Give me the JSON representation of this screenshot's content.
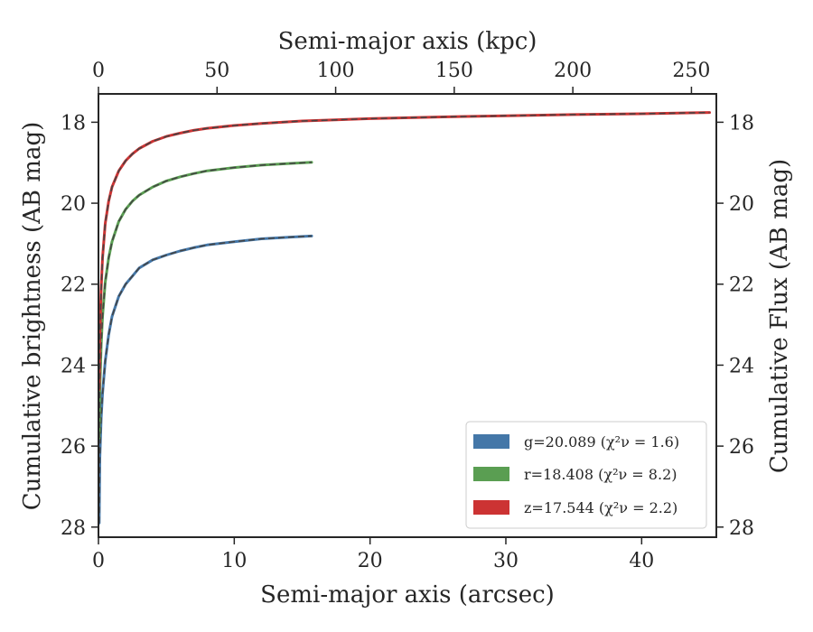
{
  "chart_data": {
    "type": "line",
    "title": "",
    "xlabel": "Semi-major axis (arcsec)",
    "top_xlabel": "Semi-major axis (kpc)",
    "ylabel": "Cumulative brightness (AB mag)",
    "right_ylabel": "Cumulative Flux (AB mag)",
    "xlim": [
      0,
      45.5
    ],
    "top_xlim": [
      0,
      260.5
    ],
    "ylim": [
      28.25,
      17.3
    ],
    "y_inverted": true,
    "xticks": [
      "0",
      "10",
      "20",
      "30",
      "40"
    ],
    "top_xticks": [
      "0",
      "50",
      "100",
      "150",
      "200",
      "250"
    ],
    "yticks": [
      "18",
      "20",
      "22",
      "24",
      "26",
      "28"
    ],
    "grid": false,
    "legend_position": "lower-right",
    "series": [
      {
        "name": "g=20.089",
        "chi2_label": "(χ²ν = 1.6)",
        "color": "#4477a8",
        "x": [
          0.05,
          0.1,
          0.2,
          0.3,
          0.5,
          0.75,
          1.0,
          1.5,
          2.0,
          2.5,
          3.0,
          4.0,
          5.0,
          6.0,
          7.0,
          8.0,
          10.0,
          12.0,
          14.0,
          15.7
        ],
        "y": [
          27.9,
          26.3,
          25.3,
          24.7,
          23.9,
          23.25,
          22.8,
          22.3,
          22.0,
          21.8,
          21.6,
          21.4,
          21.28,
          21.18,
          21.1,
          21.03,
          20.95,
          20.88,
          20.84,
          20.81
        ]
      },
      {
        "name": "r=18.408",
        "chi2_label": "(χ²ν = 8.2)",
        "color": "#5a9e52",
        "x": [
          0.05,
          0.1,
          0.2,
          0.3,
          0.5,
          0.75,
          1.0,
          1.5,
          2.0,
          2.5,
          3.0,
          4.0,
          5.0,
          6.0,
          7.0,
          8.0,
          10.0,
          12.0,
          14.0,
          15.7
        ],
        "y": [
          25.8,
          24.6,
          23.5,
          22.8,
          21.95,
          21.35,
          20.95,
          20.45,
          20.15,
          19.95,
          19.8,
          19.6,
          19.45,
          19.35,
          19.27,
          19.2,
          19.12,
          19.06,
          19.02,
          18.99
        ]
      },
      {
        "name": "z=17.544",
        "chi2_label": "(χ²ν = 2.2)",
        "color": "#cc3333",
        "x": [
          0.05,
          0.1,
          0.2,
          0.3,
          0.5,
          0.75,
          1.0,
          1.5,
          2.0,
          2.5,
          3.0,
          4.0,
          5.0,
          6.0,
          7.0,
          8.0,
          10.0,
          12.0,
          15.0,
          20.0,
          25.0,
          30.0,
          35.0,
          40.0,
          45.0
        ],
        "y": [
          24.6,
          23.3,
          22.1,
          21.35,
          20.5,
          19.95,
          19.6,
          19.2,
          18.95,
          18.78,
          18.65,
          18.47,
          18.35,
          18.27,
          18.2,
          18.15,
          18.08,
          18.03,
          17.97,
          17.91,
          17.87,
          17.84,
          17.81,
          17.79,
          17.76
        ]
      }
    ]
  }
}
